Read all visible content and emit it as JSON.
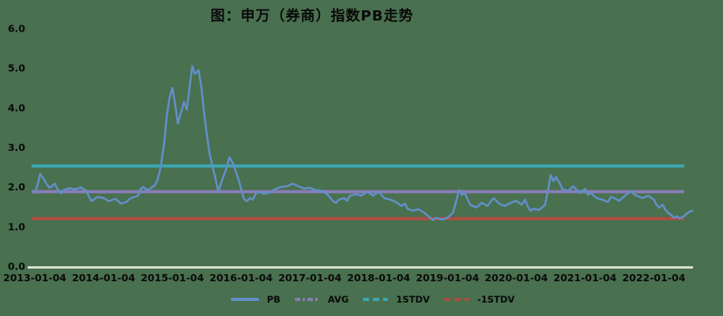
{
  "title": "图：申万（券商）指数PB走势",
  "colors": {
    "background": "#49704f",
    "text": "#0a0a0a",
    "pb": "#628fc6",
    "avg": "#8a7cb8",
    "stdv_plus": "#3ba7b4",
    "stdv_minus": "#b04c44",
    "axis": "#d6e2d2"
  },
  "chart_data": {
    "type": "line",
    "title": "图：申万（券商）指数PB走势",
    "xlabel": "",
    "ylabel": "",
    "ylim": [
      0.0,
      6.0
    ],
    "xlim": [
      2013.0,
      2022.6
    ],
    "grid": false,
    "legend_position": "bottom",
    "y_ticks": [
      "6.0",
      "5.0",
      "4.0",
      "3.0",
      "2.0",
      "1.0",
      "0.0"
    ],
    "x_ticks": [
      "2013-01-04",
      "2014-01-04",
      "2015-01-04",
      "2016-01-04",
      "2017-01-04",
      "2018-01-04",
      "2019-01-04",
      "2020-01-04",
      "2021-01-04",
      "2022-01-04"
    ],
    "reference_lines": [
      {
        "id": "plus1stdv",
        "name": "1STDV",
        "value": 2.53,
        "color": "#3ba7b4"
      },
      {
        "id": "avg",
        "name": "AVG",
        "value": 1.88,
        "color": "#8a7cb8"
      },
      {
        "id": "minus1stdv",
        "name": "-1STDV",
        "value": 1.2,
        "color": "#b04c44"
      }
    ],
    "series": [
      {
        "name": "PB",
        "color": "#628fc6",
        "points": [
          [
            2013.0,
            1.85
          ],
          [
            2013.04,
            2.05
          ],
          [
            2013.08,
            2.33
          ],
          [
            2013.13,
            2.2
          ],
          [
            2013.17,
            2.08
          ],
          [
            2013.21,
            1.98
          ],
          [
            2013.25,
            2.02
          ],
          [
            2013.29,
            2.08
          ],
          [
            2013.33,
            1.95
          ],
          [
            2013.38,
            1.84
          ],
          [
            2013.42,
            1.92
          ],
          [
            2013.5,
            1.97
          ],
          [
            2013.58,
            1.94
          ],
          [
            2013.67,
            1.99
          ],
          [
            2013.75,
            1.9
          ],
          [
            2013.79,
            1.75
          ],
          [
            2013.83,
            1.64
          ],
          [
            2013.88,
            1.71
          ],
          [
            2013.92,
            1.75
          ],
          [
            2014.0,
            1.72
          ],
          [
            2014.08,
            1.64
          ],
          [
            2014.17,
            1.7
          ],
          [
            2014.21,
            1.65
          ],
          [
            2014.25,
            1.58
          ],
          [
            2014.33,
            1.62
          ],
          [
            2014.38,
            1.7
          ],
          [
            2014.42,
            1.73
          ],
          [
            2014.5,
            1.78
          ],
          [
            2014.54,
            1.95
          ],
          [
            2014.58,
            2.0
          ],
          [
            2014.63,
            1.92
          ],
          [
            2014.67,
            1.95
          ],
          [
            2014.75,
            2.05
          ],
          [
            2014.79,
            2.2
          ],
          [
            2014.83,
            2.5
          ],
          [
            2014.88,
            3.1
          ],
          [
            2014.92,
            3.8
          ],
          [
            2014.96,
            4.25
          ],
          [
            2015.0,
            4.5
          ],
          [
            2015.04,
            4.1
          ],
          [
            2015.08,
            3.6
          ],
          [
            2015.13,
            3.9
          ],
          [
            2015.17,
            4.15
          ],
          [
            2015.21,
            3.95
          ],
          [
            2015.25,
            4.5
          ],
          [
            2015.29,
            5.05
          ],
          [
            2015.33,
            4.85
          ],
          [
            2015.38,
            4.95
          ],
          [
            2015.42,
            4.55
          ],
          [
            2015.46,
            3.9
          ],
          [
            2015.5,
            3.35
          ],
          [
            2015.54,
            2.85
          ],
          [
            2015.58,
            2.55
          ],
          [
            2015.63,
            2.2
          ],
          [
            2015.67,
            1.88
          ],
          [
            2015.71,
            2.1
          ],
          [
            2015.75,
            2.3
          ],
          [
            2015.79,
            2.5
          ],
          [
            2015.83,
            2.75
          ],
          [
            2015.88,
            2.6
          ],
          [
            2015.92,
            2.4
          ],
          [
            2015.96,
            2.2
          ],
          [
            2016.0,
            1.95
          ],
          [
            2016.04,
            1.7
          ],
          [
            2016.08,
            1.64
          ],
          [
            2016.13,
            1.72
          ],
          [
            2016.17,
            1.68
          ],
          [
            2016.21,
            1.82
          ],
          [
            2016.25,
            1.88
          ],
          [
            2016.33,
            1.83
          ],
          [
            2016.42,
            1.86
          ],
          [
            2016.5,
            1.95
          ],
          [
            2016.58,
            2.0
          ],
          [
            2016.67,
            2.02
          ],
          [
            2016.75,
            2.08
          ],
          [
            2016.83,
            2.02
          ],
          [
            2016.92,
            1.96
          ],
          [
            2017.0,
            1.98
          ],
          [
            2017.08,
            1.92
          ],
          [
            2017.17,
            1.9
          ],
          [
            2017.25,
            1.82
          ],
          [
            2017.33,
            1.65
          ],
          [
            2017.38,
            1.6
          ],
          [
            2017.42,
            1.68
          ],
          [
            2017.5,
            1.72
          ],
          [
            2017.54,
            1.65
          ],
          [
            2017.58,
            1.78
          ],
          [
            2017.67,
            1.82
          ],
          [
            2017.75,
            1.78
          ],
          [
            2017.83,
            1.88
          ],
          [
            2017.92,
            1.78
          ],
          [
            2018.0,
            1.88
          ],
          [
            2018.08,
            1.72
          ],
          [
            2018.17,
            1.68
          ],
          [
            2018.25,
            1.62
          ],
          [
            2018.33,
            1.52
          ],
          [
            2018.38,
            1.58
          ],
          [
            2018.42,
            1.45
          ],
          [
            2018.5,
            1.4
          ],
          [
            2018.58,
            1.44
          ],
          [
            2018.67,
            1.34
          ],
          [
            2018.75,
            1.22
          ],
          [
            2018.79,
            1.17
          ],
          [
            2018.83,
            1.22
          ],
          [
            2018.92,
            1.18
          ],
          [
            2019.0,
            1.22
          ],
          [
            2019.08,
            1.35
          ],
          [
            2019.17,
            1.92
          ],
          [
            2019.21,
            1.8
          ],
          [
            2019.25,
            1.85
          ],
          [
            2019.29,
            1.7
          ],
          [
            2019.33,
            1.55
          ],
          [
            2019.42,
            1.48
          ],
          [
            2019.5,
            1.6
          ],
          [
            2019.58,
            1.52
          ],
          [
            2019.67,
            1.72
          ],
          [
            2019.71,
            1.65
          ],
          [
            2019.75,
            1.58
          ],
          [
            2019.83,
            1.52
          ],
          [
            2019.92,
            1.6
          ],
          [
            2020.0,
            1.65
          ],
          [
            2020.08,
            1.55
          ],
          [
            2020.13,
            1.68
          ],
          [
            2020.17,
            1.5
          ],
          [
            2020.21,
            1.4
          ],
          [
            2020.25,
            1.45
          ],
          [
            2020.33,
            1.42
          ],
          [
            2020.42,
            1.55
          ],
          [
            2020.46,
            1.9
          ],
          [
            2020.5,
            2.3
          ],
          [
            2020.54,
            2.15
          ],
          [
            2020.58,
            2.25
          ],
          [
            2020.63,
            2.1
          ],
          [
            2020.67,
            1.95
          ],
          [
            2020.75,
            1.9
          ],
          [
            2020.83,
            2.02
          ],
          [
            2020.92,
            1.85
          ],
          [
            2021.0,
            1.95
          ],
          [
            2021.04,
            1.8
          ],
          [
            2021.08,
            1.85
          ],
          [
            2021.17,
            1.72
          ],
          [
            2021.25,
            1.68
          ],
          [
            2021.33,
            1.62
          ],
          [
            2021.38,
            1.75
          ],
          [
            2021.42,
            1.72
          ],
          [
            2021.5,
            1.65
          ],
          [
            2021.58,
            1.78
          ],
          [
            2021.67,
            1.9
          ],
          [
            2021.71,
            1.82
          ],
          [
            2021.75,
            1.78
          ],
          [
            2021.83,
            1.72
          ],
          [
            2021.92,
            1.78
          ],
          [
            2022.0,
            1.68
          ],
          [
            2022.04,
            1.55
          ],
          [
            2022.08,
            1.48
          ],
          [
            2022.13,
            1.55
          ],
          [
            2022.17,
            1.42
          ],
          [
            2022.21,
            1.35
          ],
          [
            2022.25,
            1.3
          ],
          [
            2022.29,
            1.22
          ],
          [
            2022.33,
            1.26
          ],
          [
            2022.38,
            1.21
          ],
          [
            2022.42,
            1.24
          ],
          [
            2022.46,
            1.3
          ],
          [
            2022.52,
            1.38
          ],
          [
            2022.56,
            1.4
          ]
        ]
      }
    ],
    "legend": [
      {
        "label": "PB"
      },
      {
        "label": "AVG"
      },
      {
        "label": "1STDV"
      },
      {
        "label": "-1STDV"
      }
    ]
  }
}
